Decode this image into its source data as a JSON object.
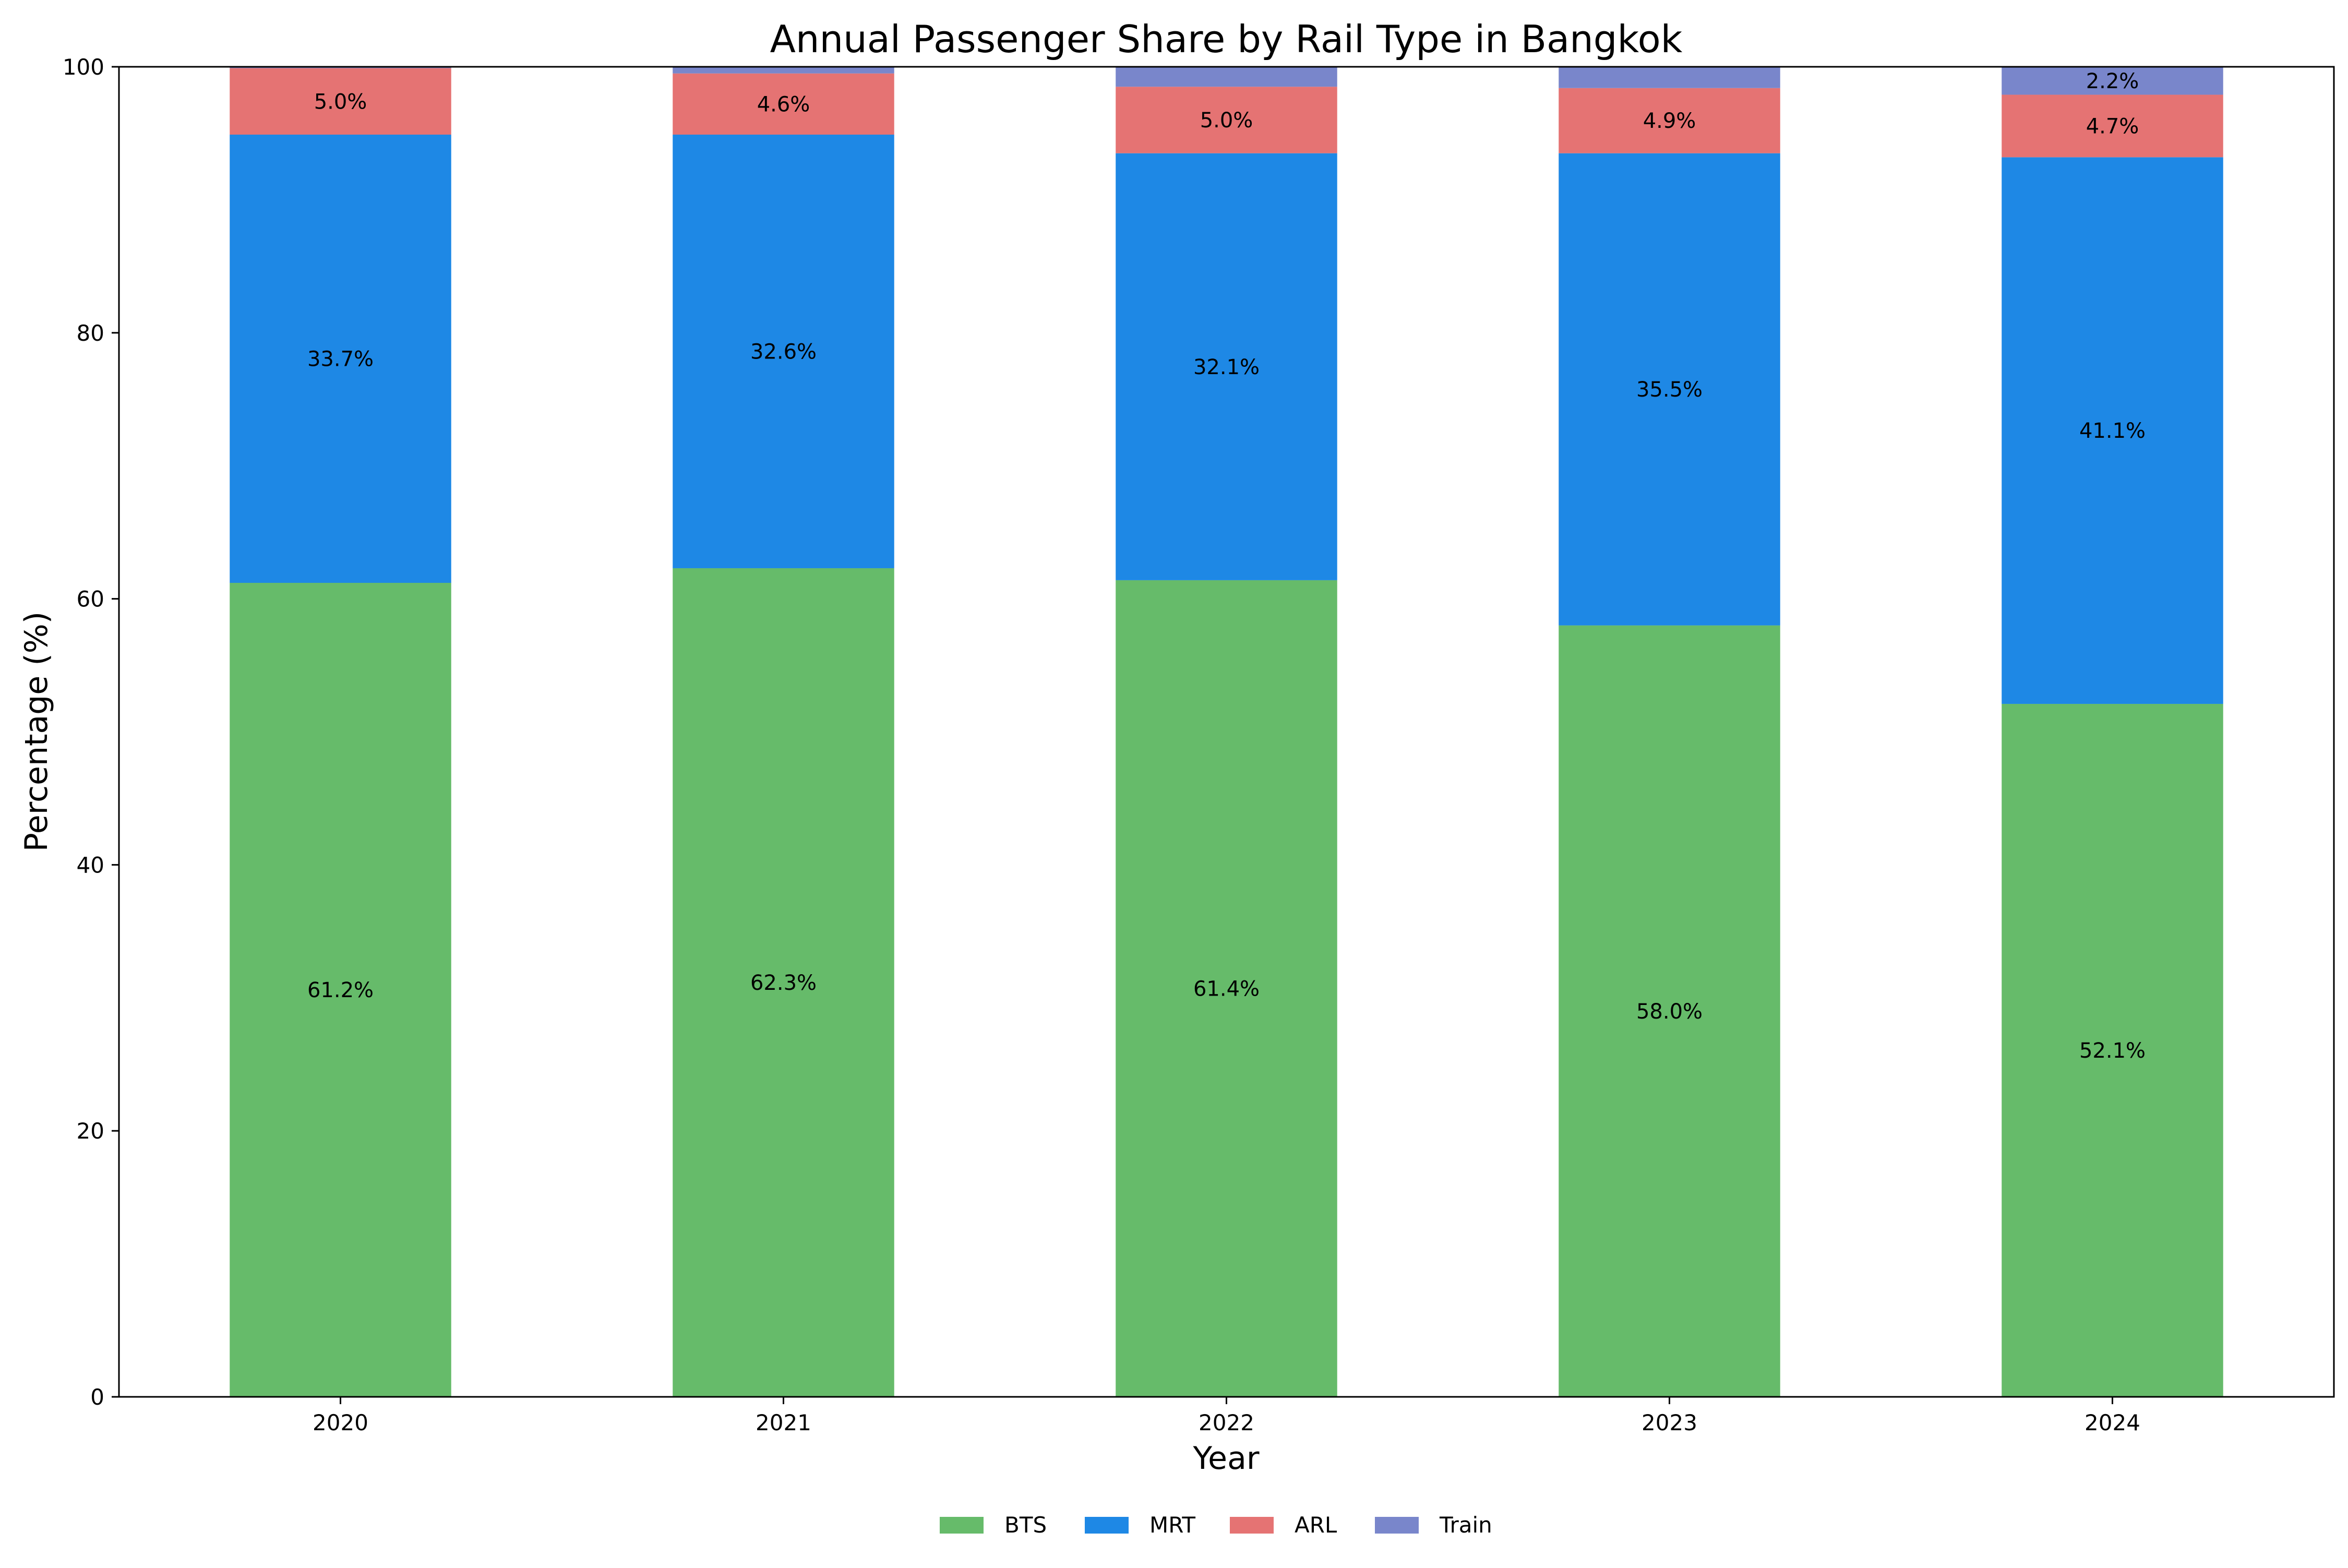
{
  "chart_data": {
    "type": "bar",
    "stacked": true,
    "title": "Annual Passenger Share by Rail Type in Bangkok",
    "xlabel": "Year",
    "ylabel": "Percentage (%)",
    "categories": [
      "2020",
      "2021",
      "2022",
      "2023",
      "2024"
    ],
    "ylim": [
      0,
      100
    ],
    "yticks": [
      0,
      20,
      40,
      60,
      80,
      100
    ],
    "grid": false,
    "legend_position": "bottom-center",
    "series": [
      {
        "name": "BTS",
        "color": "#66bb6a",
        "values": [
          61.2,
          62.3,
          61.4,
          58.0,
          52.1
        ],
        "labels": [
          "61.2%",
          "62.3%",
          "61.4%",
          "58.0%",
          "52.1%"
        ]
      },
      {
        "name": "MRT",
        "color": "#1e88e5",
        "values": [
          33.7,
          32.6,
          32.1,
          35.5,
          41.1
        ],
        "labels": [
          "33.7%",
          "32.6%",
          "32.1%",
          "35.5%",
          "41.1%"
        ]
      },
      {
        "name": "ARL",
        "color": "#e57373",
        "values": [
          5.0,
          4.6,
          5.0,
          4.9,
          4.7
        ],
        "labels": [
          "5.0%",
          "4.6%",
          "5.0%",
          "4.9%",
          "4.7%"
        ]
      },
      {
        "name": "Train",
        "color": "#7986cb",
        "values": [
          0.1,
          0.6,
          1.5,
          1.7,
          2.2
        ],
        "labels": [
          "",
          "",
          "",
          "",
          "2.2%"
        ]
      }
    ]
  }
}
